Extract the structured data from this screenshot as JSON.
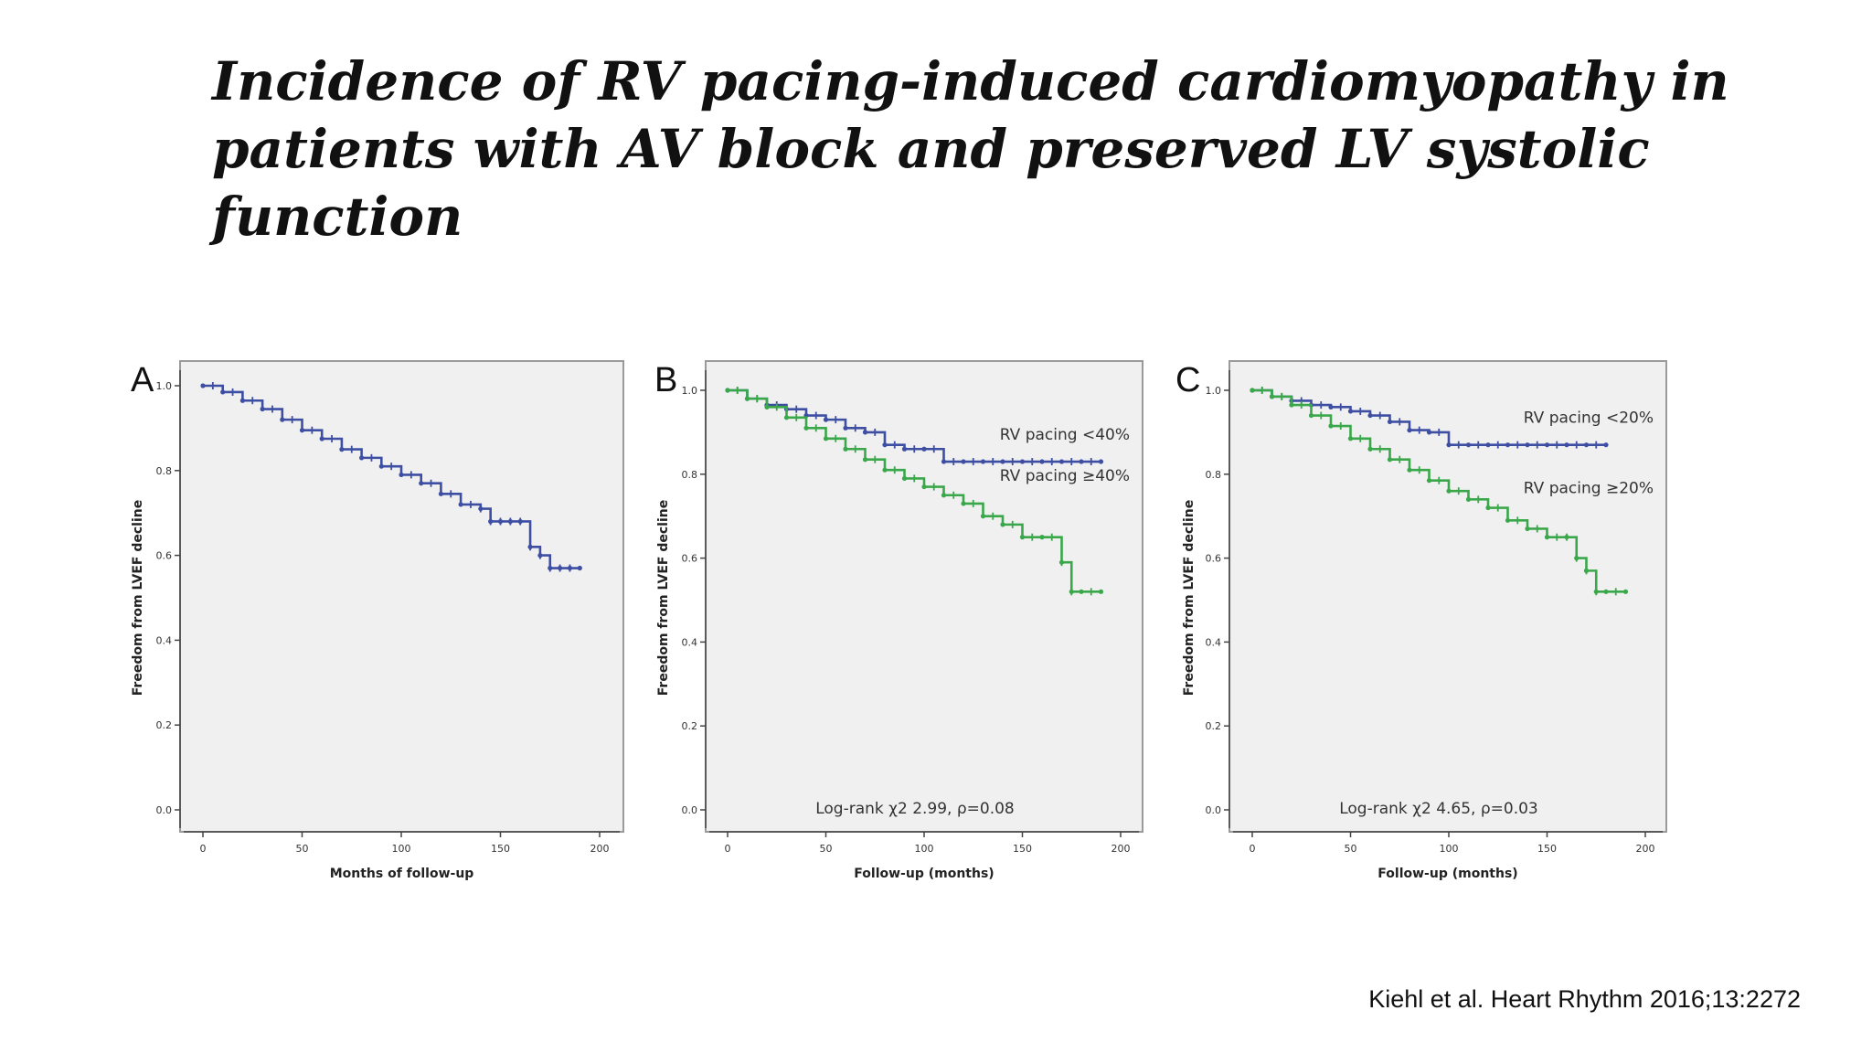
{
  "title": {
    "lines": [
      "Incidence of RV pacing-induced cardiomyopathy in",
      "patients with AV block and preserved LV systolic",
      "function"
    ]
  },
  "citation": "Kiehl et al. Heart Rhythm 2016;13:2272",
  "chart_data": [
    {
      "type": "line",
      "panel": "A",
      "xlabel": "Months of follow-up",
      "ylabel": "Freedom from LVEF decline",
      "xlim": [
        0,
        200
      ],
      "ylim": [
        0,
        1.0
      ],
      "x_ticks": [
        "0",
        "50",
        "100",
        "150",
        "200"
      ],
      "y_ticks": [
        "0.0",
        "0.2",
        "0.4",
        "0.6",
        "0.8",
        "1.0"
      ],
      "colors": {
        "series": [
          "#3e4fa3"
        ]
      },
      "series": [
        {
          "name": "",
          "color": "#3e4fa3",
          "x": [
            0,
            10,
            20,
            30,
            40,
            50,
            60,
            70,
            80,
            90,
            100,
            110,
            120,
            130,
            140,
            145,
            150,
            155,
            160,
            165,
            170,
            175,
            180,
            185,
            190
          ],
          "y": [
            1.0,
            0.985,
            0.965,
            0.945,
            0.92,
            0.895,
            0.875,
            0.85,
            0.83,
            0.81,
            0.79,
            0.77,
            0.745,
            0.72,
            0.71,
            0.68,
            0.68,
            0.68,
            0.68,
            0.62,
            0.6,
            0.57,
            0.57,
            0.57,
            0.57
          ]
        }
      ]
    },
    {
      "type": "line",
      "panel": "B",
      "xlabel": "Follow-up (months)",
      "ylabel": "Freedom from LVEF decline",
      "xlim": [
        0,
        200
      ],
      "ylim": [
        0,
        1.0
      ],
      "x_ticks": [
        "0",
        "50",
        "100",
        "150",
        "200"
      ],
      "y_ticks": [
        "0.0",
        "0.2",
        "0.4",
        "0.6",
        "0.8",
        "1.0"
      ],
      "annotation": "Log-rank χ2 2.99,  ρ=0.08",
      "colors": {
        "series": [
          "#3e4fa3",
          "#3aa84a"
        ]
      },
      "series": [
        {
          "name": "RV pacing <40%",
          "color": "#3e4fa3",
          "x": [
            0,
            10,
            20,
            30,
            40,
            50,
            60,
            70,
            80,
            90,
            100,
            110,
            120,
            130,
            140,
            150,
            160,
            170,
            180,
            190
          ],
          "y": [
            1.0,
            0.98,
            0.965,
            0.955,
            0.94,
            0.93,
            0.91,
            0.9,
            0.87,
            0.86,
            0.86,
            0.83,
            0.83,
            0.83,
            0.83,
            0.83,
            0.83,
            0.83,
            0.83,
            0.83
          ]
        },
        {
          "name": "RV pacing ≥40%",
          "color": "#3aa84a",
          "x": [
            0,
            10,
            20,
            30,
            40,
            50,
            60,
            70,
            80,
            90,
            100,
            110,
            120,
            130,
            140,
            150,
            160,
            170,
            175,
            180,
            190
          ],
          "y": [
            1.0,
            0.98,
            0.96,
            0.935,
            0.91,
            0.885,
            0.86,
            0.835,
            0.81,
            0.79,
            0.77,
            0.75,
            0.73,
            0.7,
            0.68,
            0.65,
            0.65,
            0.59,
            0.52,
            0.52,
            0.52
          ]
        }
      ]
    },
    {
      "type": "line",
      "panel": "C",
      "xlabel": "Follow-up (months)",
      "ylabel": "Freedom from LVEF decline",
      "xlim": [
        0,
        200
      ],
      "ylim": [
        0,
        1.0
      ],
      "x_ticks": [
        "0",
        "50",
        "100",
        "150",
        "200"
      ],
      "y_ticks": [
        "0.0",
        "0.2",
        "0.4",
        "0.6",
        "0.8",
        "1.0"
      ],
      "annotation": "Log-rank χ2 4.65,  ρ=0.03",
      "colors": {
        "series": [
          "#3e4fa3",
          "#3aa84a"
        ]
      },
      "series": [
        {
          "name": "RV pacing <20%",
          "color": "#3e4fa3",
          "x": [
            0,
            10,
            20,
            30,
            40,
            50,
            60,
            70,
            80,
            90,
            100,
            110,
            120,
            130,
            140,
            150,
            160,
            170,
            180
          ],
          "y": [
            1.0,
            0.985,
            0.975,
            0.965,
            0.96,
            0.95,
            0.94,
            0.925,
            0.905,
            0.9,
            0.87,
            0.87,
            0.87,
            0.87,
            0.87,
            0.87,
            0.87,
            0.87,
            0.87
          ]
        },
        {
          "name": "RV pacing ≥20%",
          "color": "#3aa84a",
          "x": [
            0,
            10,
            20,
            30,
            40,
            50,
            60,
            70,
            80,
            90,
            100,
            110,
            120,
            130,
            140,
            150,
            160,
            165,
            170,
            175,
            180,
            190
          ],
          "y": [
            1.0,
            0.985,
            0.965,
            0.94,
            0.915,
            0.885,
            0.86,
            0.835,
            0.81,
            0.785,
            0.76,
            0.74,
            0.72,
            0.69,
            0.67,
            0.65,
            0.65,
            0.6,
            0.57,
            0.52,
            0.52,
            0.52
          ]
        }
      ]
    }
  ]
}
